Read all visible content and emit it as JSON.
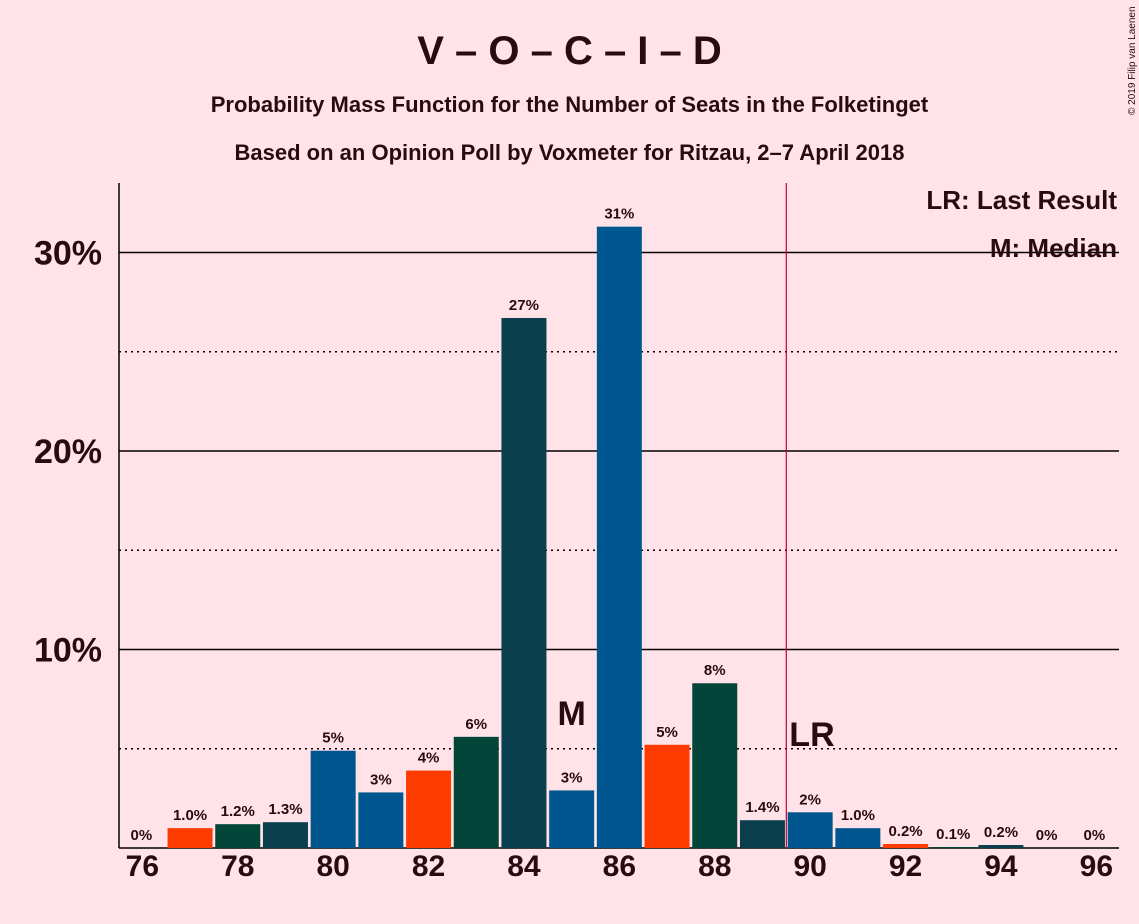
{
  "chart_data": {
    "type": "bar",
    "title": "V – O – C – I – D",
    "subtitle_1": "Probability Mass Function for the Number of Seats in the Folketinget",
    "subtitle_2": "Based on an Opinion Poll by Voxmeter for Ritzau, 2–7 April 2018",
    "copyright": "© 2019 Filip van Laenen",
    "x": [
      76,
      77,
      78,
      79,
      80,
      81,
      82,
      83,
      84,
      85,
      86,
      87,
      88,
      89,
      90,
      91,
      92,
      93,
      94,
      95,
      96
    ],
    "values": [
      0,
      1.0,
      1.2,
      1.3,
      4.9,
      2.8,
      3.9,
      5.6,
      26.7,
      2.9,
      31.3,
      5.2,
      8.3,
      1.4,
      1.8,
      1.0,
      0.2,
      0.05,
      0.15,
      0,
      0
    ],
    "labels": [
      "0%",
      "1.0%",
      "1.2%",
      "1.3%",
      "5%",
      "3%",
      "4%",
      "6%",
      "27%",
      "3%",
      "31%",
      "5%",
      "8%",
      "1.4%",
      "2%",
      "1.0%",
      "0.2%",
      "0.1%",
      "0.2%",
      "0%",
      "0%"
    ],
    "colors": [
      "#00578f",
      "#ff3c00",
      "#04453a",
      "#0b3f4e",
      "#00578f",
      "#00578f",
      "#ff3c00",
      "#04453a",
      "#0b3f4e",
      "#00578f",
      "#00578f",
      "#ff3c00",
      "#04453a",
      "#0b3f4e",
      "#00578f",
      "#00578f",
      "#ff3c00",
      "#04453a",
      "#0b3f4e",
      "#00578f",
      "#00578f"
    ],
    "xticks": [
      76,
      78,
      80,
      82,
      84,
      86,
      88,
      90,
      92,
      94,
      96
    ],
    "yticks": [
      {
        "value": 10,
        "label": "10%"
      },
      {
        "value": 20,
        "label": "20%"
      },
      {
        "value": 30,
        "label": "30%"
      }
    ],
    "minor_gridlines": [
      5,
      15,
      25
    ],
    "ylim": [
      0,
      33.5
    ],
    "median": {
      "x": 85,
      "label": "M"
    },
    "last_result": {
      "x": 89.5,
      "label": "LR"
    },
    "legend": [
      "LR: Last Result",
      "M: Median"
    ],
    "legend_position": "top-right",
    "line_color": "#c2002f"
  }
}
